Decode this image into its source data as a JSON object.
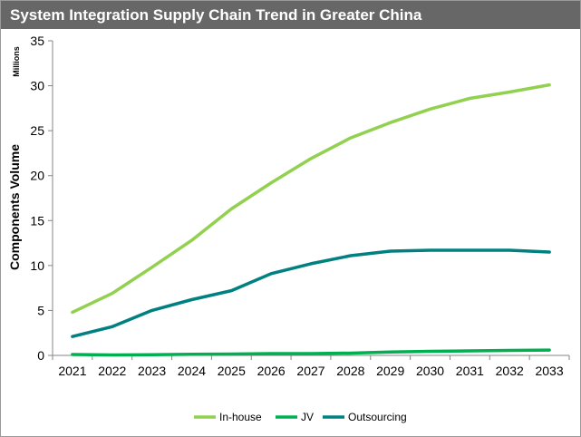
{
  "chart_data": {
    "type": "line",
    "title": "System Integration Supply Chain Trend in Greater China",
    "ylabel": "Components Volume",
    "yunits": "Millions",
    "xlabel": "",
    "ylim": [
      0,
      35
    ],
    "yticks": [
      0,
      5,
      10,
      15,
      20,
      25,
      30,
      35
    ],
    "x": [
      "2021",
      "2022",
      "2023",
      "2024",
      "2025",
      "2026",
      "2027",
      "2028",
      "2029",
      "2030",
      "2031",
      "2032",
      "2033"
    ],
    "legend_position": "bottom",
    "grid": false,
    "series": [
      {
        "name": "In-house",
        "color": "#92d050",
        "values": [
          4.8,
          6.9,
          9.8,
          12.8,
          16.3,
          19.2,
          21.9,
          24.2,
          25.9,
          27.4,
          28.6,
          29.3,
          30.1
        ]
      },
      {
        "name": "JV",
        "color": "#00b050",
        "values": [
          0.1,
          0.05,
          0.08,
          0.12,
          0.15,
          0.2,
          0.2,
          0.25,
          0.38,
          0.45,
          0.5,
          0.55,
          0.6
        ]
      },
      {
        "name": "Outsourcing",
        "color": "#008080",
        "values": [
          2.1,
          3.2,
          5.0,
          6.2,
          7.2,
          9.1,
          10.2,
          11.1,
          11.6,
          11.7,
          11.7,
          11.7,
          11.5
        ]
      }
    ]
  }
}
